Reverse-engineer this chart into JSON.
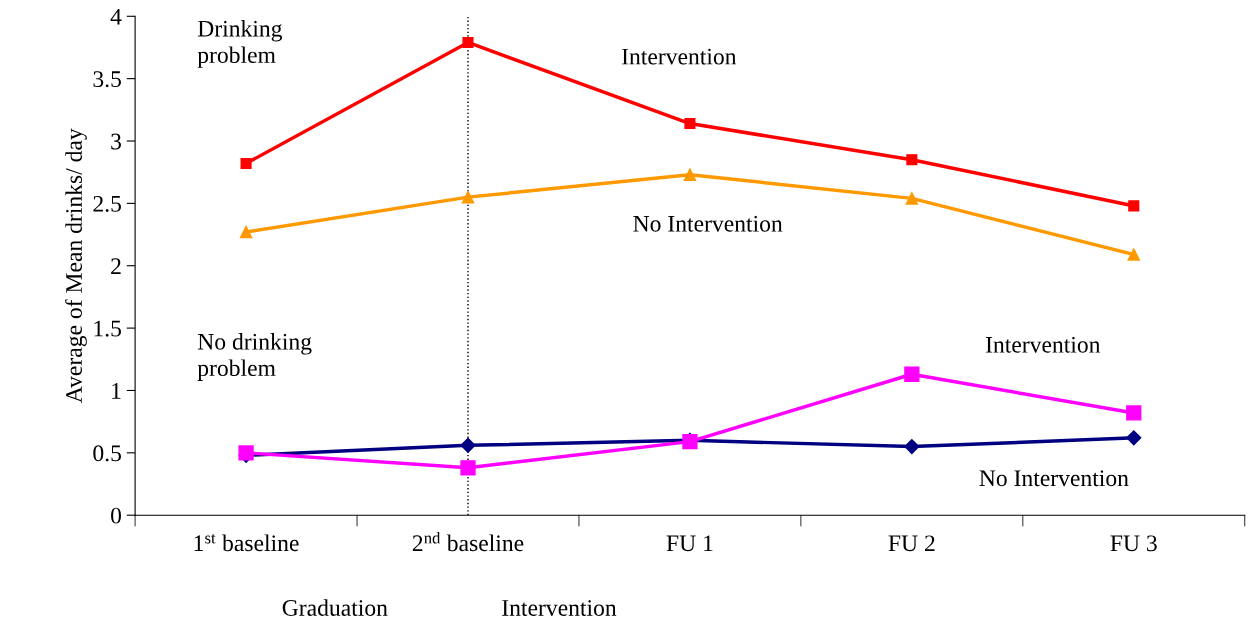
{
  "chart_data": {
    "type": "line",
    "ylabel": "Average of Mean drinks/ day",
    "categories": [
      "1$^{st}$ baseline",
      "2$^{nd}$ baseline",
      "FU 1",
      "FU 2",
      "FU 3"
    ],
    "series": [
      {
        "color": "#ff0000",
        "marker": "square",
        "values": [
          2.82,
          3.79,
          3.14,
          2.85,
          2.48
        ]
      },
      {
        "color": "#ff9900",
        "marker": "triangle",
        "values": [
          2.27,
          2.55,
          2.73,
          2.54,
          2.09
        ]
      },
      {
        "color": "#ff00ff",
        "marker": "square",
        "values": [
          0.5,
          0.38,
          0.59,
          1.13,
          0.82
        ]
      },
      {
        "color": "#000080",
        "marker": "diamond",
        "values": [
          0.48,
          0.56,
          0.6,
          0.55,
          0.62
        ]
      }
    ],
    "ylim": [
      0,
      4
    ],
    "yticks": [
      0,
      0.5,
      1,
      1.5,
      2,
      2.5,
      3,
      3.5,
      4
    ],
    "ref_lines": [
      {
        "axis": "x",
        "value": "2$^{nd}$ baseline",
        "color": "#000000",
        "line_style": "dotted"
      }
    ],
    "annotations": [
      "Drinking\nproblem",
      "Intervention",
      "No Intervention",
      "No drinking\nproblem",
      "Intervention",
      "No Intervention",
      "Graduation",
      "Intervention"
    ],
    "grid": false,
    "legend": false,
    "line_style": "solid"
  }
}
